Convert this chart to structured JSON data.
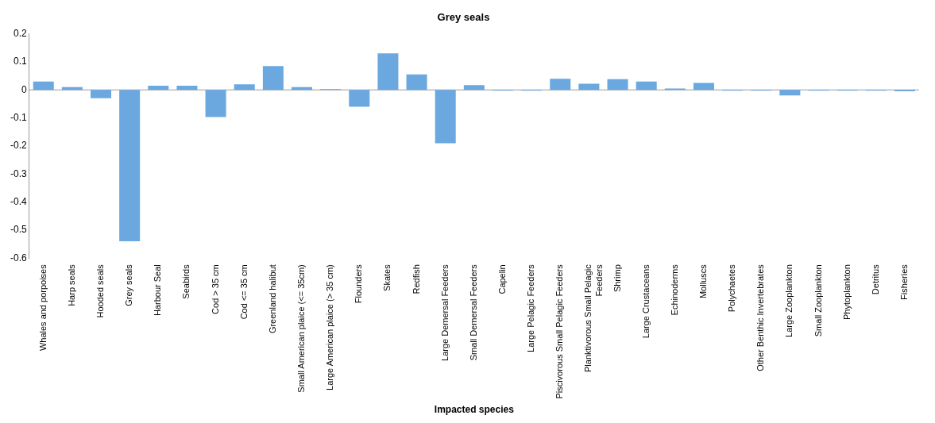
{
  "chart_data": {
    "type": "bar",
    "title": "Grey seals",
    "xlabel": "Impacted species",
    "categories": [
      "Whales and porpoises",
      "Harp seals",
      "Hooded seals",
      "Grey seals",
      "Harbour Seal",
      "Seabirds",
      "Cod > 35 cm",
      "Cod <= 35 cm",
      "Greenland halibut",
      "Small American plaice (<= 35cm)",
      "Large American plaice (> 35 cm)",
      "Flounders",
      "Skates",
      "Redfish",
      "Large Demersal Feeders",
      "Small Demersal Feeders",
      "Capelin",
      "Large Pelagic Feeders",
      "Piscivorous Small Pelagic Feeders",
      "Planktivorous Small Pelagic Feeders",
      "Shrimp",
      "Large Crustaceans",
      "Echinoderms",
      "Molluscs",
      "Polychaetes",
      "Other Benthic Invertebrates",
      "Large Zooplankton",
      "Small Zooplankton",
      "Phytoplankton",
      "Detritus",
      "Fisheries"
    ],
    "values": [
      0.03,
      0.01,
      -0.03,
      -0.54,
      0.015,
      0.015,
      -0.097,
      0.02,
      0.085,
      0.01,
      0.003,
      -0.06,
      0.13,
      0.055,
      -0.19,
      0.017,
      -0.003,
      -0.003,
      0.04,
      0.022,
      0.038,
      0.03,
      0.005,
      0.025,
      -0.003,
      -0.003,
      -0.02,
      -0.003,
      -0.003,
      -0.003,
      -0.005
    ],
    "color": "#6aa8df",
    "ylim": [
      -0.6,
      0.2
    ],
    "yticks": [
      -0.6,
      -0.5,
      -0.4,
      -0.3,
      -0.2,
      -0.1,
      0,
      0.1,
      0.2
    ],
    "grid": false,
    "legend": false,
    "ref_lines": [
      {
        "axis": "y",
        "value": 0,
        "color": "#999999"
      }
    ]
  }
}
